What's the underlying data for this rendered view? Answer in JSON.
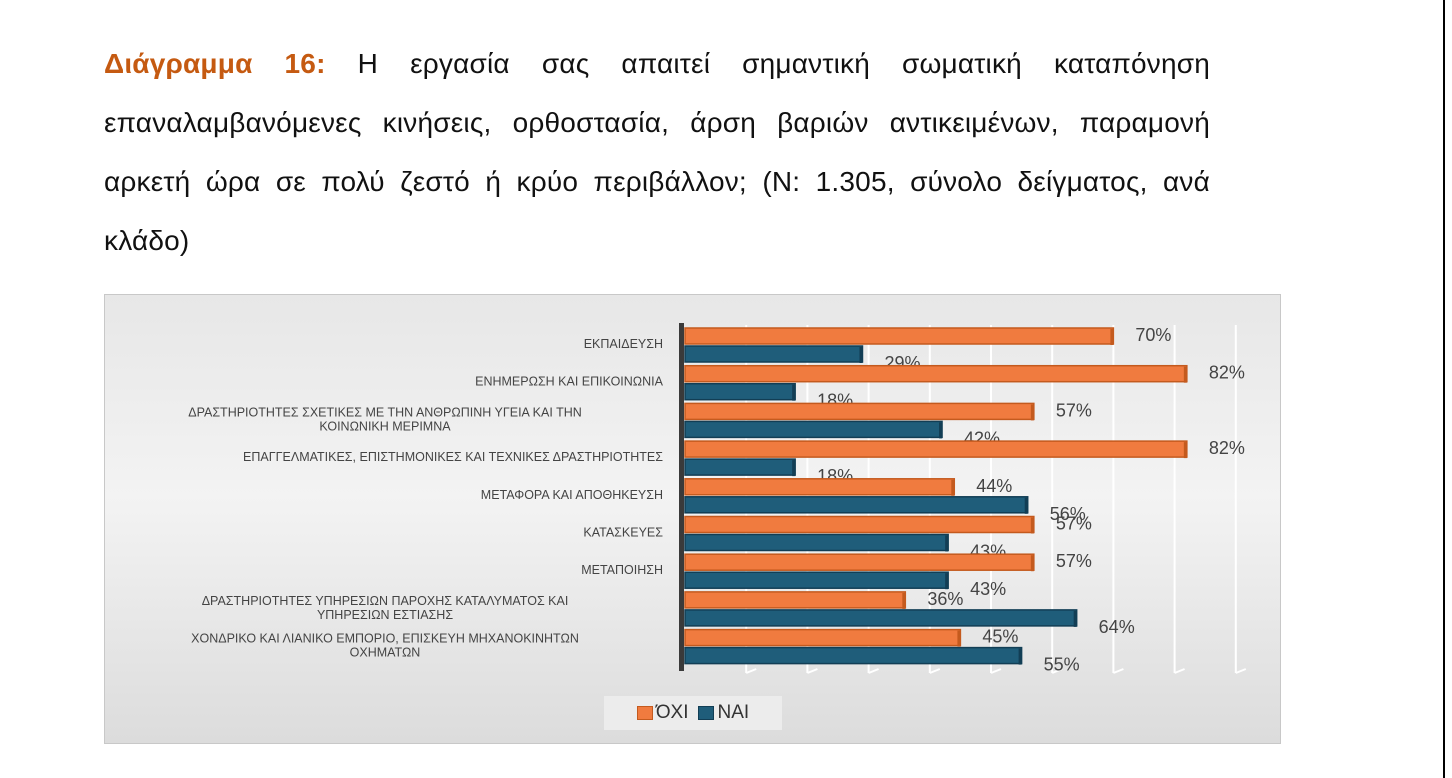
{
  "caption": {
    "label": "Διάγραμμα 16:",
    "text": "Η εργασία σας απαιτεί σημαντική σωματική καταπόνηση επαναλαμβανόμενες κινήσεις, ορθοστασία, άρση βαριών αντικειμένων, παραμονή αρκετή ώρα σε πολύ ζεστό ή κρύο περιβάλλον; (Ν: 1.305, σύνολο δείγματος, ανά κλάδο)"
  },
  "chart_data": {
    "type": "bar",
    "orientation": "horizontal",
    "title": "",
    "xlabel": "",
    "ylabel": "",
    "xlim": [
      0,
      100
    ],
    "grid": true,
    "legend_position": "bottom",
    "categories": [
      [
        "ΕΚΠΑΙΔΕΥΣΗ"
      ],
      [
        "ΕΝΗΜΕΡΩΣΗ ΚΑΙ ΕΠΙΚΟΙΝΩΝΙΑ"
      ],
      [
        "ΔΡΑΣΤΗΡΙΟΤΗΤΕΣ ΣΧΕΤΙΚΕΣ ΜΕ ΤΗΝ ΑΝΘΡΩΠΙΝΗ ΥΓΕΙΑ ΚΑΙ ΤΗΝ",
        "ΚΟΙΝΩΝΙΚΗ ΜΕΡΙΜΝΑ"
      ],
      [
        "ΕΠΑΓΓΕΛΜΑΤΙΚΕΣ, ΕΠΙΣΤΗΜΟΝΙΚΕΣ ΚΑΙ ΤΕΧΝΙΚΕΣ ΔΡΑΣΤΗΡΙΟΤΗΤΕΣ"
      ],
      [
        "ΜΕΤΑΦΟΡΑ ΚΑΙ ΑΠΟΘΗΚΕΥΣΗ"
      ],
      [
        "ΚΑΤΑΣΚΕΥΕΣ"
      ],
      [
        "ΜΕΤΑΠΟΙΗΣΗ"
      ],
      [
        "ΔΡΑΣΤΗΡΙΟΤΗΤΕΣ ΥΠΗΡΕΣΙΩΝ ΠΑΡΟΧΗΣ ΚΑΤΑΛΥΜΑΤΟΣ ΚΑΙ",
        "ΥΠΗΡΕΣΙΩΝ ΕΣΤΙΑΣΗΣ"
      ],
      [
        "ΧΟΝΔΡΙΚΟ ΚΑΙ ΛΙΑΝΙΚΟ ΕΜΠΟΡΙΟ, ΕΠΙΣΚΕΥΗ ΜΗΧΑΝΟΚΙΝΗΤΩΝ",
        "ΟΧΗΜΑΤΩΝ"
      ]
    ],
    "series": [
      {
        "name": "ΌΧΙ",
        "color": "#f07b3f",
        "values": [
          70,
          82,
          57,
          82,
          44,
          57,
          57,
          36,
          45
        ]
      },
      {
        "name": "ΝΑΙ",
        "color": "#1f5d7a",
        "values": [
          29,
          18,
          42,
          18,
          56,
          43,
          43,
          64,
          55
        ]
      }
    ],
    "value_suffix": "%"
  }
}
